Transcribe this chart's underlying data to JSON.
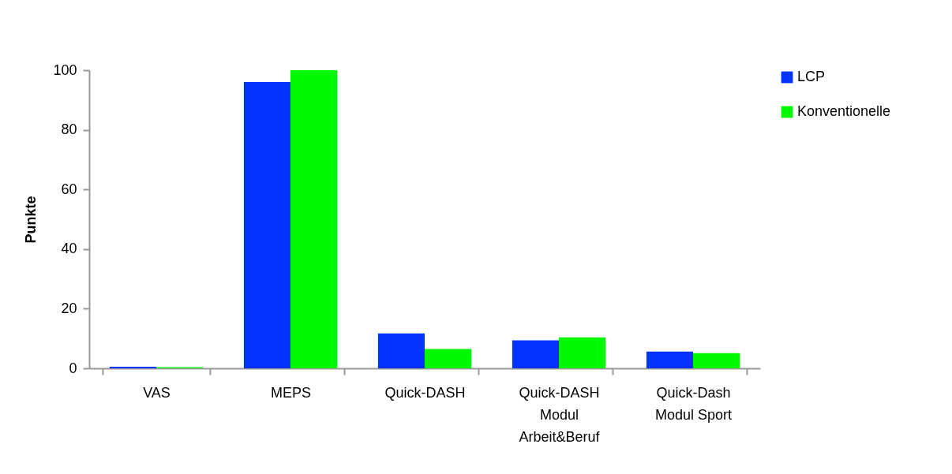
{
  "chart_data": {
    "type": "bar",
    "ylabel": "Punkte",
    "categories": [
      "VAS",
      "MEPS",
      "Quick-DASH",
      "Quick-DASH Modul Arbeit&Beruf",
      "Quick-Dash Modul Sport"
    ],
    "series": [
      {
        "name": "LCP",
        "color": "#0433ff",
        "values": [
          0.5,
          96,
          11.7,
          9.4,
          5.6
        ]
      },
      {
        "name": "Konventionelle",
        "color": "#00f900",
        "values": [
          0.4,
          100,
          6.5,
          10.4,
          5.1
        ]
      }
    ],
    "ylim": [
      0,
      100
    ],
    "yticks": [
      0,
      20,
      40,
      60,
      80,
      100
    ],
    "grid": false,
    "legend": "right"
  }
}
